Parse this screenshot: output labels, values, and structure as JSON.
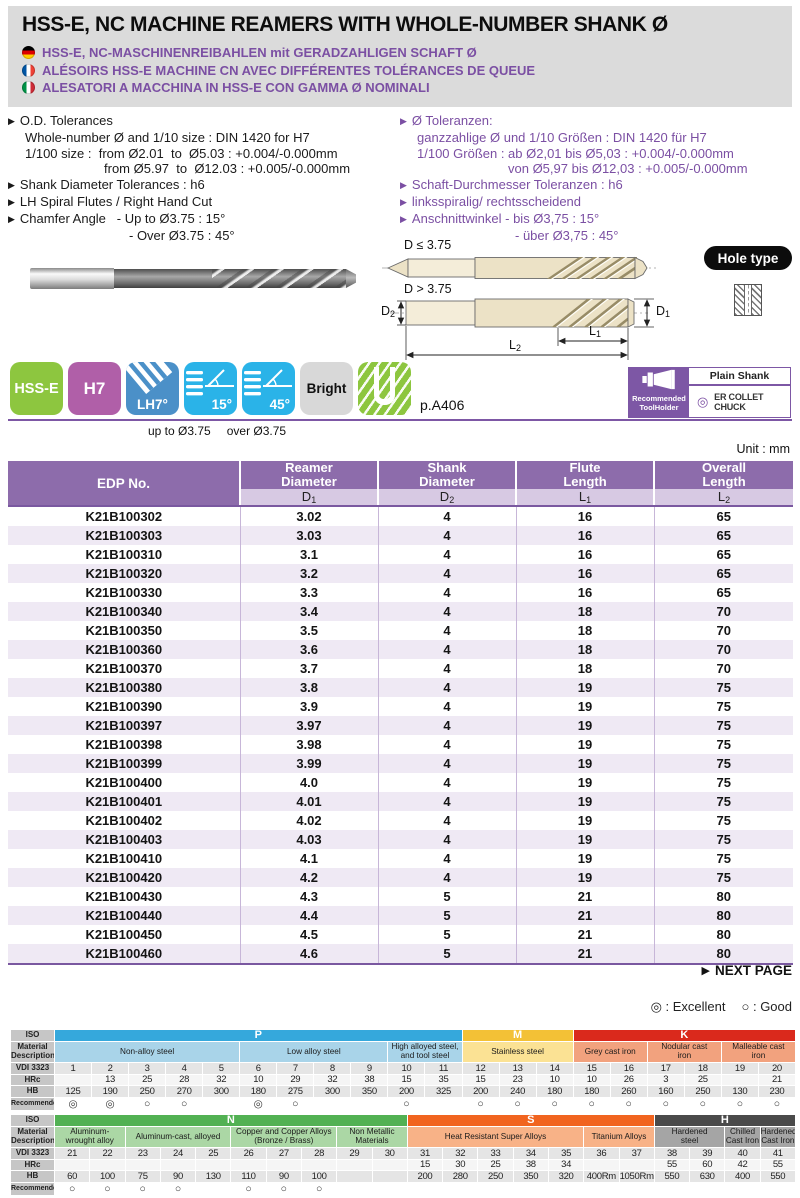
{
  "header": {
    "title": "HSS-E, NC MACHINE REAMERS WITH WHOLE-NUMBER SHANK Ø",
    "subtitles": [
      {
        "flag": "germany",
        "text": "HSS-E, NC-MASCHINENREIBAHLEN mit GERADZAHLIGEN SCHAFT Ø"
      },
      {
        "flag": "france",
        "text": "ALÉSOIRS HSS-E MACHINE CN AVEC DIFFÉRENTES TOLÉRANCES DE QUEUE"
      },
      {
        "flag": "italy",
        "text": "ALESATORI A MACCHINA IN HSS-E CON GAMMA Ø NOMINALI"
      }
    ]
  },
  "specs_en": [
    {
      "i": 0,
      "t": "O.D. Tolerances"
    },
    {
      "i": 1,
      "t": "Whole-number Ø and 1/10 size : DIN 1420 for H7"
    },
    {
      "i": 1,
      "t": "1/100 size :  from Ø2.01  to  Ø5.03 : +0.004/-0.000mm"
    },
    {
      "i": 2,
      "t": "from Ø5.97  to  Ø12.03 : +0.005/-0.000mm"
    },
    {
      "i": 0,
      "t": "Shank Diameter Tolerances : h6"
    },
    {
      "i": 0,
      "t": "LH Spiral Flutes / Right Hand Cut"
    },
    {
      "i": 0,
      "t": "Chamfer Angle   - Up to Ø3.75 : 15°"
    },
    {
      "i": 3,
      "t": "- Over Ø3.75 : 45°"
    }
  ],
  "specs_de": [
    {
      "i": 0,
      "t": "Ø Toleranzen:"
    },
    {
      "i": 1,
      "t": "ganzzahlige Ø und 1/10 Größen : DIN 1420 für H7"
    },
    {
      "i": 1,
      "t": "1/100 Größen : ab Ø2,01 bis Ø5,03 : +0.004/-0.000mm"
    },
    {
      "i": 2,
      "t": "von Ø5,97 bis Ø12,03 : +0.005/-0.000mm"
    },
    {
      "i": 0,
      "t": "Schaft-Durchmesser Toleranzen : h6"
    },
    {
      "i": 0,
      "t": "linksspiralig/ rechtsscheidend"
    },
    {
      "i": 0,
      "t": "Anschnittwinkel - bis Ø3,75 : 15°"
    },
    {
      "i": 3,
      "t": "- über Ø3,75 : 45°"
    }
  ],
  "diagram": {
    "cond_small": "D ≤ 3.75",
    "cond_large": "D > 3.75",
    "hole_type": "Hole type",
    "dims": {
      "d1": {
        "base": "D",
        "sub": "1"
      },
      "d2": {
        "base": "D",
        "sub": "2"
      },
      "l1": {
        "base": "L",
        "sub": "1"
      },
      "l2": {
        "base": "L",
        "sub": "2"
      }
    }
  },
  "badges": {
    "items": [
      {
        "type": "hss",
        "label": "HSS-E"
      },
      {
        "type": "h7",
        "label": "H7"
      },
      {
        "type": "lh",
        "label": "LH7°"
      },
      {
        "type": "a15",
        "label": "15°"
      },
      {
        "type": "a45",
        "label": "45°"
      },
      {
        "type": "bright",
        "label": "Bright"
      },
      {
        "type": "hole",
        "label": ""
      }
    ],
    "page_ref": "p.A406",
    "sub_up": "up to Ø3.75",
    "sub_over": "over Ø3.75"
  },
  "toolholder": {
    "left_label": "Recommended\nToolHolder",
    "shank_type": "Plain Shank",
    "holder_name": "ER COLLET CHUCK"
  },
  "table": {
    "unit": "Unit : mm",
    "columns": [
      {
        "label": "EDP No."
      },
      {
        "label": "Reamer\nDiameter",
        "sym": {
          "base": "D",
          "sub": "1"
        }
      },
      {
        "label": "Shank\nDiameter",
        "sym": {
          "base": "D",
          "sub": "2"
        }
      },
      {
        "label": "Flute\nLength",
        "sym": {
          "base": "L",
          "sub": "1"
        }
      },
      {
        "label": "Overall\nLength",
        "sym": {
          "base": "L",
          "sub": "2"
        }
      }
    ],
    "rows": [
      [
        "K21B100302",
        "3.02",
        "4",
        "16",
        "65"
      ],
      [
        "K21B100303",
        "3.03",
        "4",
        "16",
        "65"
      ],
      [
        "K21B100310",
        "3.1",
        "4",
        "16",
        "65"
      ],
      [
        "K21B100320",
        "3.2",
        "4",
        "16",
        "65"
      ],
      [
        "K21B100330",
        "3.3",
        "4",
        "16",
        "65"
      ],
      [
        "K21B100340",
        "3.4",
        "4",
        "18",
        "70"
      ],
      [
        "K21B100350",
        "3.5",
        "4",
        "18",
        "70"
      ],
      [
        "K21B100360",
        "3.6",
        "4",
        "18",
        "70"
      ],
      [
        "K21B100370",
        "3.7",
        "4",
        "18",
        "70"
      ],
      [
        "K21B100380",
        "3.8",
        "4",
        "19",
        "75"
      ],
      [
        "K21B100390",
        "3.9",
        "4",
        "19",
        "75"
      ],
      [
        "K21B100397",
        "3.97",
        "4",
        "19",
        "75"
      ],
      [
        "K21B100398",
        "3.98",
        "4",
        "19",
        "75"
      ],
      [
        "K21B100399",
        "3.99",
        "4",
        "19",
        "75"
      ],
      [
        "K21B100400",
        "4.0",
        "4",
        "19",
        "75"
      ],
      [
        "K21B100401",
        "4.01",
        "4",
        "19",
        "75"
      ],
      [
        "K21B100402",
        "4.02",
        "4",
        "19",
        "75"
      ],
      [
        "K21B100403",
        "4.03",
        "4",
        "19",
        "75"
      ],
      [
        "K21B100410",
        "4.1",
        "4",
        "19",
        "75"
      ],
      [
        "K21B100420",
        "4.2",
        "4",
        "19",
        "75"
      ],
      [
        "K21B100430",
        "4.3",
        "5",
        "21",
        "80"
      ],
      [
        "K21B100440",
        "4.4",
        "5",
        "21",
        "80"
      ],
      [
        "K21B100450",
        "4.5",
        "5",
        "21",
        "80"
      ],
      [
        "K21B100460",
        "4.6",
        "5",
        "21",
        "80"
      ]
    ],
    "next_page": "NEXT PAGE"
  },
  "material_legend": {
    "excellent": "◎ : Excellent",
    "good": "○ : Good"
  },
  "material_row_labels": [
    "ISO",
    "Material\nDescription",
    "VDI 3323",
    "HRc",
    "HB",
    "Recommended"
  ],
  "material_tables": [
    {
      "groups": [
        {
          "code": "P",
          "color": "#35a8dc",
          "light": "#a9d4e9",
          "materials": [
            {
              "name": "Non-alloy steel",
              "span": 5
            },
            {
              "name": "Low alloy steel",
              "span": 4
            },
            {
              "name": "High alloyed steel,\nand tool steel",
              "span": 2
            }
          ]
        },
        {
          "code": "M",
          "color": "#f3c136",
          "light": "#fbe294",
          "materials": [
            {
              "name": "Stainless steel",
              "span": 3
            }
          ]
        },
        {
          "code": "K",
          "color": "#da291c",
          "light": "#f2a27e",
          "materials": [
            {
              "name": "Grey cast iron",
              "span": 2
            },
            {
              "name": "Nodular cast\niron",
              "span": 2
            },
            {
              "name": "Malleable cast\niron",
              "span": 2
            }
          ]
        }
      ],
      "vdi": [
        "1",
        "2",
        "3",
        "4",
        "5",
        "6",
        "7",
        "8",
        "9",
        "10",
        "11",
        "12",
        "13",
        "14",
        "15",
        "16",
        "17",
        "18",
        "19",
        "20"
      ],
      "hrc": [
        "",
        "13",
        "25",
        "28",
        "32",
        "10",
        "29",
        "32",
        "38",
        "15",
        "35",
        "15",
        "23",
        "10",
        "10",
        "26",
        "3",
        "25",
        "",
        "21"
      ],
      "hb": [
        "125",
        "190",
        "250",
        "270",
        "300",
        "180",
        "275",
        "300",
        "350",
        "200",
        "325",
        "200",
        "240",
        "180",
        "180",
        "260",
        "160",
        "250",
        "130",
        "230"
      ],
      "recommended": [
        "◎",
        "◎",
        "○",
        "○",
        "",
        "◎",
        "○",
        "",
        "",
        "○",
        "",
        "○",
        "○",
        "○",
        "○",
        "○",
        "○",
        "○",
        "○",
        "○"
      ]
    },
    {
      "groups": [
        {
          "code": "N",
          "color": "#52b153",
          "light": "#abd7a5",
          "materials": [
            {
              "name": "Aluminum-\nwrought alloy",
              "span": 2
            },
            {
              "name": "Aluminum-cast, alloyed",
              "span": 3
            },
            {
              "name": "Copper and Copper Alloys\n(Bronze / Brass)",
              "span": 3
            },
            {
              "name": "Non Metallic\nMaterials",
              "span": 2
            }
          ]
        },
        {
          "code": "S",
          "color": "#f1641f",
          "light": "#f8b287",
          "materials": [
            {
              "name": "Heat Resistant Super Alloys",
              "span": 5
            },
            {
              "name": "Titanium Alloys",
              "span": 2
            }
          ]
        },
        {
          "code": "H",
          "color": "#4a4a4a",
          "light": "#a5a5a5",
          "materials": [
            {
              "name": "Hardened\nsteel",
              "span": 2
            },
            {
              "name": "Chilled\nCast Iron",
              "span": 1
            },
            {
              "name": "Hardened\nCast Iron",
              "span": 1
            }
          ]
        }
      ],
      "vdi": [
        "21",
        "22",
        "23",
        "24",
        "25",
        "26",
        "27",
        "28",
        "29",
        "30",
        "31",
        "32",
        "33",
        "34",
        "35",
        "36",
        "37",
        "38",
        "39",
        "40",
        "41"
      ],
      "hrc": [
        "",
        "",
        "",
        "",
        "",
        "",
        "",
        "",
        "",
        "",
        "15",
        "30",
        "25",
        "38",
        "34",
        "",
        "",
        "55",
        "60",
        "42",
        "55"
      ],
      "hb": [
        "60",
        "100",
        "75",
        "90",
        "130",
        "110",
        "90",
        "100",
        "",
        "",
        "200",
        "280",
        "250",
        "350",
        "320",
        "400Rm",
        "1050Rm",
        "550",
        "630",
        "400",
        "550"
      ],
      "recommended": [
        "○",
        "○",
        "○",
        "○",
        "",
        "○",
        "○",
        "○",
        "",
        "",
        "",
        "",
        "",
        "",
        "",
        "",
        "",
        "",
        "",
        "",
        ""
      ]
    }
  ]
}
